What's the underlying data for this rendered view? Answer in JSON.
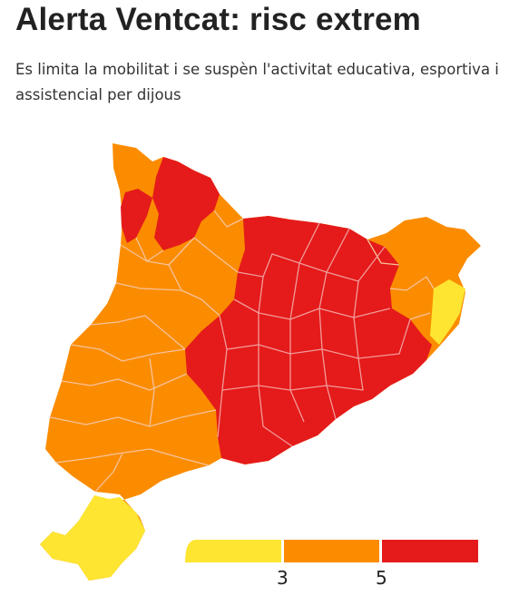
{
  "header": {
    "title": "Alerta Ventcat: risc extrem",
    "subtitle": "Es limita la mobilitat i se suspèn l'activitat educativa, esportiva i assistencial per dijous"
  },
  "colors": {
    "level_low": "#FDE531",
    "level_mid": "#FB8C00",
    "level_high": "#E51A1A",
    "border": "#F6C29B",
    "border_red": "#F29A9A"
  },
  "map": {
    "regions": [
      {
        "id": "val-aran",
        "level": "high"
      },
      {
        "id": "alt-urgell",
        "level": "mid"
      },
      {
        "id": "pallars",
        "level": "high"
      },
      {
        "id": "lleida-west",
        "level": "mid"
      },
      {
        "id": "solsones",
        "level": "mid"
      },
      {
        "id": "bergueda-moianes",
        "level": "high"
      },
      {
        "id": "ripolles-garrotxa",
        "level": "high"
      },
      {
        "id": "alt-emporda",
        "level": "mid"
      },
      {
        "id": "baix-emporda",
        "level": "low"
      },
      {
        "id": "girones-selva",
        "level": "mid"
      },
      {
        "id": "barcelona-area",
        "level": "high"
      },
      {
        "id": "segarra-bages",
        "level": "high"
      },
      {
        "id": "urgell-noguera",
        "level": "mid"
      },
      {
        "id": "camp-tarragona",
        "level": "mid"
      },
      {
        "id": "terra-alta-ebre",
        "level": "mid"
      },
      {
        "id": "montsia",
        "level": "low"
      }
    ]
  },
  "legend": {
    "tick_labels": [
      "3",
      "5"
    ]
  }
}
